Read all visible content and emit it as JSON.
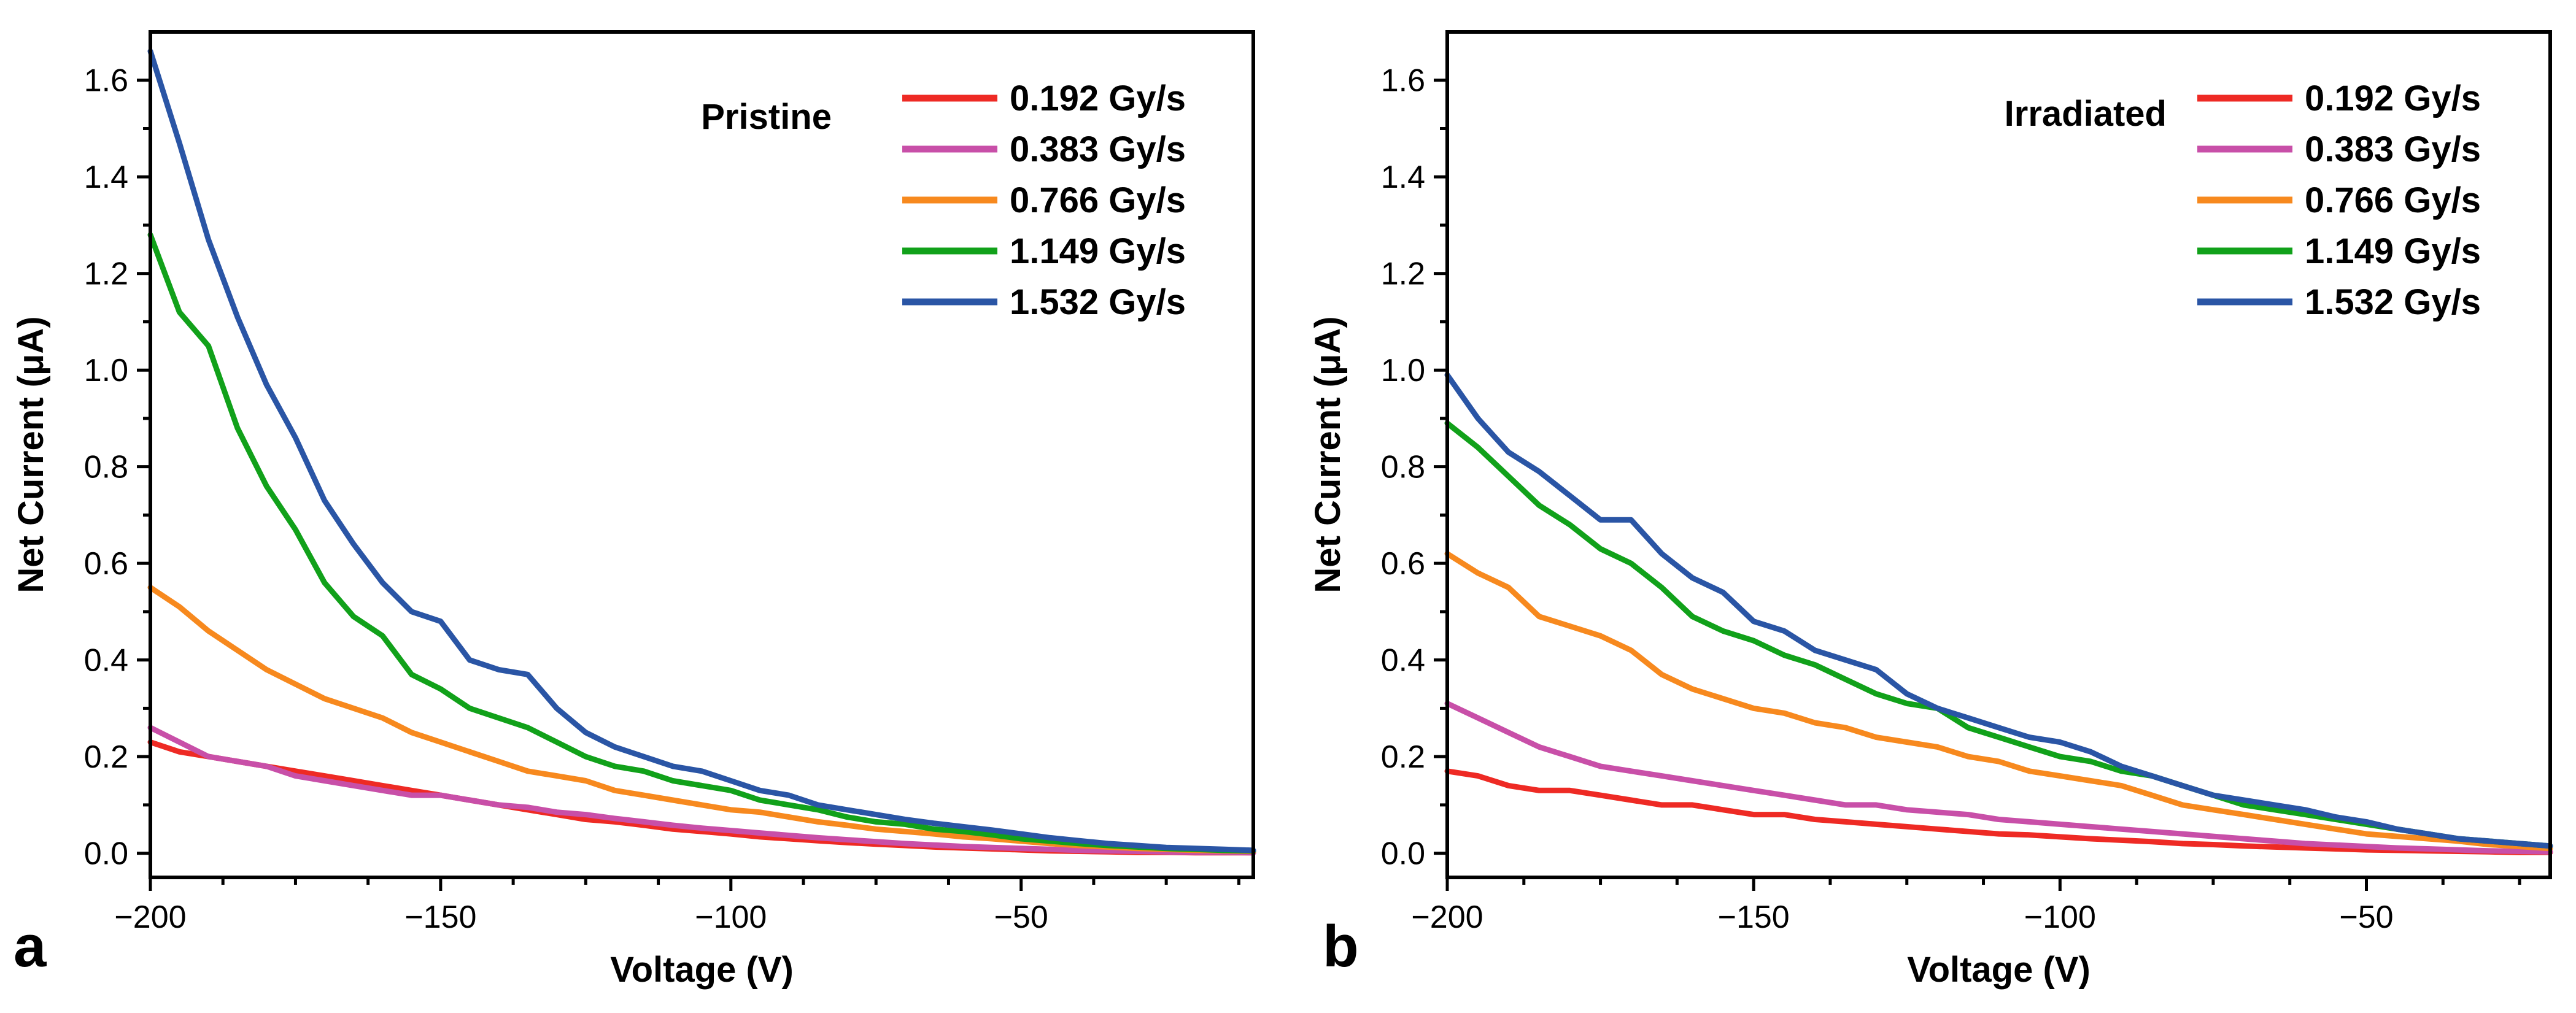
{
  "colors": {
    "0.192": "#ee2a24",
    "0.383": "#c84fa8",
    "0.766": "#f7891e",
    "1.149": "#11a11a",
    "1.532": "#2a55a5"
  },
  "chart_data": [
    {
      "type": "line",
      "panel_label": "a",
      "annotation": "Pristine",
      "xlabel": "Voltage (V)",
      "ylabel": "Net Current (μA)",
      "xlim": [
        -200,
        -10
      ],
      "ylim": [
        -0.05,
        1.7
      ],
      "xticks": [
        -200,
        -150,
        -100,
        -50
      ],
      "xtick_labels": [
        "−200",
        "−150",
        "−100",
        "−50"
      ],
      "yticks": [
        0.0,
        0.2,
        0.4,
        0.6,
        0.8,
        1.0,
        1.2,
        1.4,
        1.6
      ],
      "ytick_labels": [
        "0.0",
        "0.2",
        "0.4",
        "0.6",
        "0.8",
        "1.0",
        "1.2",
        "1.4",
        "1.6"
      ],
      "legend_position": "top-right",
      "x": [
        -200,
        -195,
        -190,
        -185,
        -180,
        -175,
        -170,
        -165,
        -160,
        -155,
        -150,
        -145,
        -140,
        -135,
        -130,
        -125,
        -120,
        -115,
        -110,
        -105,
        -100,
        -95,
        -90,
        -85,
        -80,
        -75,
        -70,
        -65,
        -60,
        -55,
        -50,
        -45,
        -40,
        -35,
        -30,
        -25,
        -20,
        -15,
        -10
      ],
      "series": [
        {
          "name": "0.192 Gy/s",
          "color_key": "0.192",
          "values": [
            0.23,
            0.21,
            0.2,
            0.19,
            0.18,
            0.17,
            0.16,
            0.15,
            0.14,
            0.13,
            0.12,
            0.11,
            0.1,
            0.09,
            0.08,
            0.07,
            0.065,
            0.058,
            0.05,
            0.045,
            0.04,
            0.034,
            0.03,
            0.026,
            0.022,
            0.019,
            0.016,
            0.013,
            0.011,
            0.009,
            0.007,
            0.005,
            0.004,
            0.003,
            0.002,
            0.002,
            0.001,
            0.001,
            0.001
          ]
        },
        {
          "name": "0.383 Gy/s",
          "color_key": "0.383",
          "values": [
            0.26,
            0.23,
            0.2,
            0.19,
            0.18,
            0.16,
            0.15,
            0.14,
            0.13,
            0.12,
            0.12,
            0.11,
            0.1,
            0.095,
            0.085,
            0.08,
            0.072,
            0.065,
            0.058,
            0.052,
            0.047,
            0.042,
            0.037,
            0.032,
            0.028,
            0.024,
            0.02,
            0.017,
            0.014,
            0.012,
            0.01,
            0.008,
            0.006,
            0.005,
            0.004,
            0.003,
            0.002,
            0.002,
            0.001
          ]
        },
        {
          "name": "0.766 Gy/s",
          "color_key": "0.766",
          "values": [
            0.55,
            0.51,
            0.46,
            0.42,
            0.38,
            0.35,
            0.32,
            0.3,
            0.28,
            0.25,
            0.23,
            0.21,
            0.19,
            0.17,
            0.16,
            0.15,
            0.13,
            0.12,
            0.11,
            0.1,
            0.09,
            0.085,
            0.075,
            0.065,
            0.058,
            0.05,
            0.045,
            0.04,
            0.034,
            0.03,
            0.025,
            0.02,
            0.016,
            0.013,
            0.01,
            0.008,
            0.006,
            0.005,
            0.004
          ]
        },
        {
          "name": "1.149 Gy/s",
          "color_key": "1.149",
          "values": [
            1.28,
            1.12,
            1.05,
            0.88,
            0.76,
            0.67,
            0.56,
            0.49,
            0.45,
            0.37,
            0.34,
            0.3,
            0.28,
            0.26,
            0.23,
            0.2,
            0.18,
            0.17,
            0.15,
            0.14,
            0.13,
            0.11,
            0.1,
            0.09,
            0.075,
            0.065,
            0.06,
            0.05,
            0.045,
            0.038,
            0.03,
            0.025,
            0.02,
            0.016,
            0.013,
            0.01,
            0.008,
            0.006,
            0.005
          ]
        },
        {
          "name": "1.532 Gy/s",
          "color_key": "1.532",
          "values": [
            1.66,
            1.47,
            1.27,
            1.11,
            0.97,
            0.86,
            0.73,
            0.64,
            0.56,
            0.5,
            0.48,
            0.4,
            0.38,
            0.37,
            0.3,
            0.25,
            0.22,
            0.2,
            0.18,
            0.17,
            0.15,
            0.13,
            0.12,
            0.1,
            0.09,
            0.08,
            0.07,
            0.062,
            0.055,
            0.048,
            0.04,
            0.032,
            0.026,
            0.02,
            0.016,
            0.012,
            0.01,
            0.008,
            0.006
          ]
        }
      ]
    },
    {
      "type": "line",
      "panel_label": "b",
      "annotation": "Irradiated",
      "xlabel": "Voltage (V)",
      "ylabel": "Net Current (μA)",
      "xlim": [
        -200,
        -20
      ],
      "ylim": [
        -0.05,
        1.7
      ],
      "xticks": [
        -200,
        -150,
        -100,
        -50
      ],
      "xtick_labels": [
        "−200",
        "−150",
        "−100",
        "−50"
      ],
      "yticks": [
        0.0,
        0.2,
        0.4,
        0.6,
        0.8,
        1.0,
        1.2,
        1.4,
        1.6
      ],
      "ytick_labels": [
        "0.0",
        "0.2",
        "0.4",
        "0.6",
        "0.8",
        "1.0",
        "1.2",
        "1.4",
        "1.6"
      ],
      "legend_position": "top-right",
      "x": [
        -200,
        -195,
        -190,
        -185,
        -180,
        -175,
        -170,
        -165,
        -160,
        -155,
        -150,
        -145,
        -140,
        -135,
        -130,
        -125,
        -120,
        -115,
        -110,
        -105,
        -100,
        -95,
        -90,
        -85,
        -80,
        -75,
        -70,
        -65,
        -60,
        -55,
        -50,
        -45,
        -40,
        -35,
        -30,
        -25,
        -20
      ],
      "series": [
        {
          "name": "0.192 Gy/s",
          "color_key": "0.192",
          "values": [
            0.17,
            0.16,
            0.14,
            0.13,
            0.13,
            0.12,
            0.11,
            0.1,
            0.1,
            0.09,
            0.08,
            0.08,
            0.07,
            0.065,
            0.06,
            0.055,
            0.05,
            0.045,
            0.04,
            0.038,
            0.034,
            0.03,
            0.027,
            0.024,
            0.02,
            0.018,
            0.015,
            0.013,
            0.011,
            0.009,
            0.007,
            0.006,
            0.005,
            0.004,
            0.003,
            0.002,
            0.002
          ]
        },
        {
          "name": "0.383 Gy/s",
          "color_key": "0.383",
          "values": [
            0.31,
            0.28,
            0.25,
            0.22,
            0.2,
            0.18,
            0.17,
            0.16,
            0.15,
            0.14,
            0.13,
            0.12,
            0.11,
            0.1,
            0.1,
            0.09,
            0.085,
            0.08,
            0.07,
            0.065,
            0.06,
            0.055,
            0.05,
            0.045,
            0.04,
            0.035,
            0.03,
            0.025,
            0.02,
            0.017,
            0.014,
            0.011,
            0.009,
            0.007,
            0.005,
            0.004,
            0.003
          ]
        },
        {
          "name": "0.766 Gy/s",
          "color_key": "0.766",
          "values": [
            0.62,
            0.58,
            0.55,
            0.49,
            0.47,
            0.45,
            0.42,
            0.37,
            0.34,
            0.32,
            0.3,
            0.29,
            0.27,
            0.26,
            0.24,
            0.23,
            0.22,
            0.2,
            0.19,
            0.17,
            0.16,
            0.15,
            0.14,
            0.12,
            0.1,
            0.09,
            0.08,
            0.07,
            0.06,
            0.05,
            0.04,
            0.035,
            0.03,
            0.025,
            0.018,
            0.014,
            0.01
          ]
        },
        {
          "name": "1.149 Gy/s",
          "color_key": "1.149",
          "values": [
            0.89,
            0.84,
            0.78,
            0.72,
            0.68,
            0.63,
            0.6,
            0.55,
            0.49,
            0.46,
            0.44,
            0.41,
            0.39,
            0.36,
            0.33,
            0.31,
            0.3,
            0.26,
            0.24,
            0.22,
            0.2,
            0.19,
            0.17,
            0.16,
            0.14,
            0.12,
            0.1,
            0.09,
            0.08,
            0.07,
            0.06,
            0.05,
            0.04,
            0.03,
            0.025,
            0.02,
            0.015
          ]
        },
        {
          "name": "1.532 Gy/s",
          "color_key": "1.532",
          "values": [
            0.99,
            0.9,
            0.83,
            0.79,
            0.74,
            0.69,
            0.69,
            0.62,
            0.57,
            0.54,
            0.48,
            0.46,
            0.42,
            0.4,
            0.38,
            0.33,
            0.3,
            0.28,
            0.26,
            0.24,
            0.23,
            0.21,
            0.18,
            0.16,
            0.14,
            0.12,
            0.11,
            0.1,
            0.09,
            0.075,
            0.065,
            0.05,
            0.04,
            0.03,
            0.025,
            0.02,
            0.015
          ]
        }
      ]
    }
  ]
}
